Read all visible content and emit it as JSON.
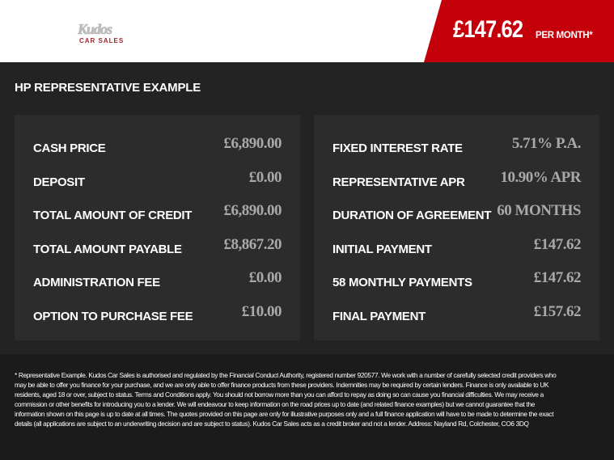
{
  "brand": {
    "logo_text": "Kudos",
    "logo_sub": "CAR SALES"
  },
  "header": {
    "price": "£147.62",
    "per_month": "PER MONTH*",
    "accent": "#c4000a"
  },
  "title": "HP REPRESENTATIVE EXAMPLE",
  "left": [
    {
      "label": "CASH PRICE",
      "value": "£6,890.00"
    },
    {
      "label": "DEPOSIT",
      "value": "£0.00"
    },
    {
      "label": "TOTAL AMOUNT OF CREDIT",
      "value": "£6,890.00"
    },
    {
      "label": "TOTAL AMOUNT PAYABLE",
      "value": "£8,867.20"
    },
    {
      "label": "ADMINISTRATION FEE",
      "value": "£0.00"
    },
    {
      "label": "OPTION TO PURCHASE FEE",
      "value": "£10.00"
    }
  ],
  "right": [
    {
      "label": "FIXED INTEREST RATE",
      "value": "5.71% P.A."
    },
    {
      "label": "REPRESENTATIVE APR",
      "value": "10.90% APR"
    },
    {
      "label": "DURATION OF AGREEMENT",
      "value": "60 MONTHS"
    },
    {
      "label": "INITIAL PAYMENT",
      "value": "£147.62"
    },
    {
      "label": "58 MONTHLY PAYMENTS",
      "value": "£147.62"
    },
    {
      "label": "FINAL PAYMENT",
      "value": "£157.62"
    }
  ],
  "disclaimer": "* Representative Example. Kudos Car Sales is authorised and regulated by the Financial Conduct Authority, registered number 920577. We work with a number of carefully selected credit providers who may be able to offer you finance for your purchase, and we are only able to offer finance products from these providers. Indemnities may be required by certain lenders. Finance is only available to UK residents, aged 18 or over, subject to status. Terms and Conditions apply. You should not borrow more than you can afford to repay as doing so can cause you financial difficulties. We may receive a commission or other benefits for introducing you to a lender. We will endeavour to keep information on the road prices up to date (and related finance examples) but we cannot guarantee that the information shown on this page is up to date at all times. The quotes provided on this page are only for illustrative purposes only and a full finance application will have to be made to determine the exact details (all applications are subject to an underwriting decision and are subject to status). Kudos Car Sales acts as a credit broker and not a lender. Address: Nayland Rd, Colchester, CO6 3DQ"
}
